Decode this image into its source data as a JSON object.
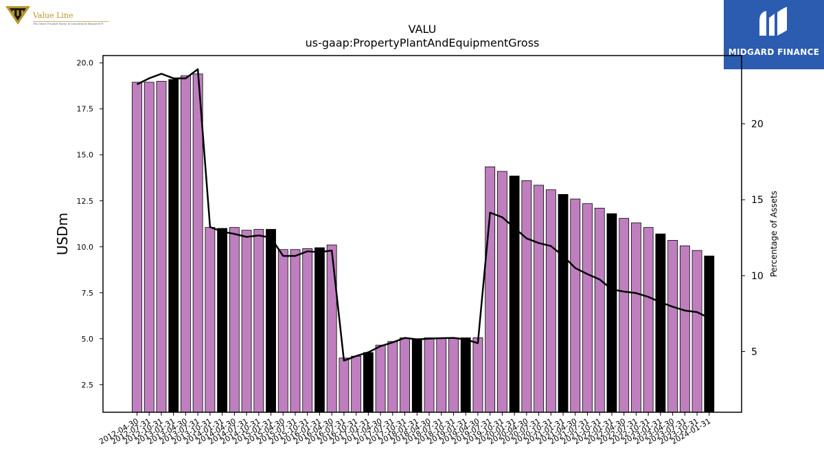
{
  "logos": {
    "value_line": {
      "name": "Value Line",
      "tagline": "The Most Trusted Name in Investment Research®"
    },
    "midgard": {
      "name": "MIDGARD FINANCE"
    }
  },
  "colors": {
    "bar_default": "#bf7fbf",
    "bar_highlight": "#000000",
    "line": "#000000",
    "logo_blue": "#2b5cb0",
    "logo_gold": "#b8962e"
  },
  "chart_data": {
    "type": "bar",
    "title": "VALU",
    "subtitle": "us-gaap:PropertyPlantAndEquipmentGross",
    "ylabel": "USDm",
    "y2label": "Percentage of Assets",
    "ylim": [
      1.0,
      20.4
    ],
    "y2lim": [
      1.0,
      24.5
    ],
    "yticks": [
      "2.5",
      "5.0",
      "7.5",
      "10.0",
      "12.5",
      "15.0",
      "17.5",
      "20.0"
    ],
    "y2ticks": [
      "5",
      "10",
      "15",
      "20"
    ],
    "categories": [
      "2012-04-30",
      "2012-07-31",
      "2012-10-31",
      "2013-01-31",
      "2013-04-30",
      "2013-07-31",
      "2013-10-31",
      "2014-01-31",
      "2014-04-30",
      "2014-07-31",
      "2014-10-31",
      "2015-01-31",
      "2015-04-30",
      "2015-07-31",
      "2015-10-31",
      "2016-01-31",
      "2016-04-30",
      "2016-07-31",
      "2016-10-31",
      "2017-01-31",
      "2017-04-30",
      "2017-07-31",
      "2017-10-31",
      "2018-01-31",
      "2018-04-30",
      "2018-07-31",
      "2018-10-31",
      "2019-01-31",
      "2019-04-30",
      "2019-07-31",
      "2019-10-31",
      "2020-01-31",
      "2020-04-30",
      "2020-07-31",
      "2020-10-31",
      "2021-01-31",
      "2021-04-30",
      "2021-07-31",
      "2021-10-31",
      "2022-01-31",
      "2022-04-30",
      "2022-07-31",
      "2022-10-31",
      "2023-01-31",
      "2023-04-30",
      "2023-07-31",
      "2023-10-31",
      "2024-01-31"
    ],
    "series": [
      {
        "type": "bar",
        "axis": "left",
        "values": [
          18.95,
          18.95,
          19.0,
          19.1,
          19.3,
          19.4,
          11.05,
          11.0,
          11.05,
          10.9,
          10.95,
          10.95,
          9.85,
          9.85,
          9.9,
          9.95,
          10.1,
          3.95,
          4.05,
          4.25,
          4.65,
          4.85,
          5.05,
          5.0,
          5.05,
          5.05,
          5.05,
          5.05,
          5.05,
          14.35,
          14.1,
          13.85,
          13.6,
          13.35,
          13.1,
          12.85,
          12.6,
          12.35,
          12.1,
          11.8,
          11.55,
          11.3,
          11.05,
          10.7,
          10.35,
          10.05,
          9.8,
          9.5
        ],
        "highlight_every": 4,
        "highlight_offset": 3
      },
      {
        "type": "line",
        "axis": "right",
        "values": [
          22.6,
          23.0,
          23.3,
          23.0,
          23.0,
          23.6,
          13.2,
          12.9,
          12.75,
          12.55,
          12.65,
          12.5,
          11.3,
          11.3,
          11.6,
          11.55,
          11.65,
          4.4,
          4.7,
          4.95,
          5.35,
          5.6,
          5.9,
          5.8,
          5.85,
          5.88,
          5.9,
          5.8,
          5.55,
          14.15,
          13.85,
          13.15,
          12.45,
          12.15,
          11.95,
          11.3,
          10.5,
          10.1,
          9.75,
          9.1,
          8.95,
          8.85,
          8.6,
          8.25,
          7.95,
          7.7,
          7.6,
          7.2
        ]
      }
    ],
    "grid": false
  }
}
